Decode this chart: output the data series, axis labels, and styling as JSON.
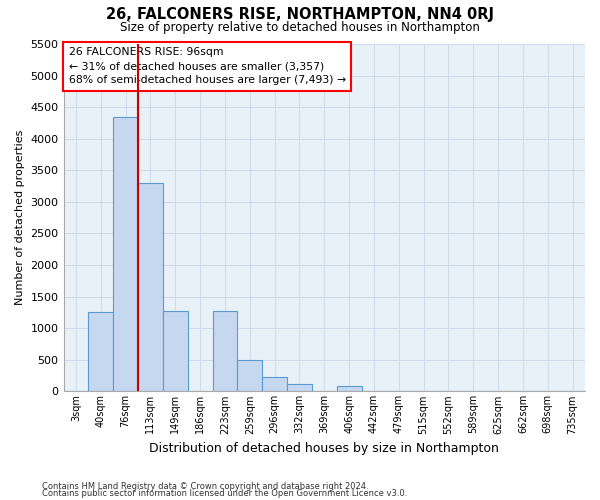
{
  "title": "26, FALCONERS RISE, NORTHAMPTON, NN4 0RJ",
  "subtitle": "Size of property relative to detached houses in Northampton",
  "xlabel": "Distribution of detached houses by size in Northampton",
  "ylabel": "Number of detached properties",
  "footnote1": "Contains HM Land Registry data © Crown copyright and database right 2024.",
  "footnote2": "Contains public sector information licensed under the Open Government Licence v3.0.",
  "annotation_line1": "26 FALCONERS RISE: 96sqm",
  "annotation_line2": "← 31% of detached houses are smaller (3,357)",
  "annotation_line3": "68% of semi-detached houses are larger (7,493) →",
  "bar_labels": [
    "3sqm",
    "40sqm",
    "76sqm",
    "113sqm",
    "149sqm",
    "186sqm",
    "223sqm",
    "259sqm",
    "296sqm",
    "332sqm",
    "369sqm",
    "406sqm",
    "442sqm",
    "479sqm",
    "515sqm",
    "552sqm",
    "589sqm",
    "625sqm",
    "662sqm",
    "698sqm",
    "735sqm"
  ],
  "bar_values": [
    0,
    1250,
    4350,
    3300,
    1270,
    0,
    1270,
    490,
    220,
    110,
    0,
    90,
    0,
    0,
    0,
    0,
    0,
    0,
    0,
    0,
    0
  ],
  "bar_color": "#c5d8f0",
  "bar_edge_color": "#5b9bd5",
  "vline_x_index": 2,
  "vline_color": "#cc0000",
  "ylim": [
    0,
    5500
  ],
  "yticks": [
    0,
    500,
    1000,
    1500,
    2000,
    2500,
    3000,
    3500,
    4000,
    4500,
    5000,
    5500
  ],
  "grid_color": "#c8d8e8",
  "bg_color": "#e8f0f8"
}
